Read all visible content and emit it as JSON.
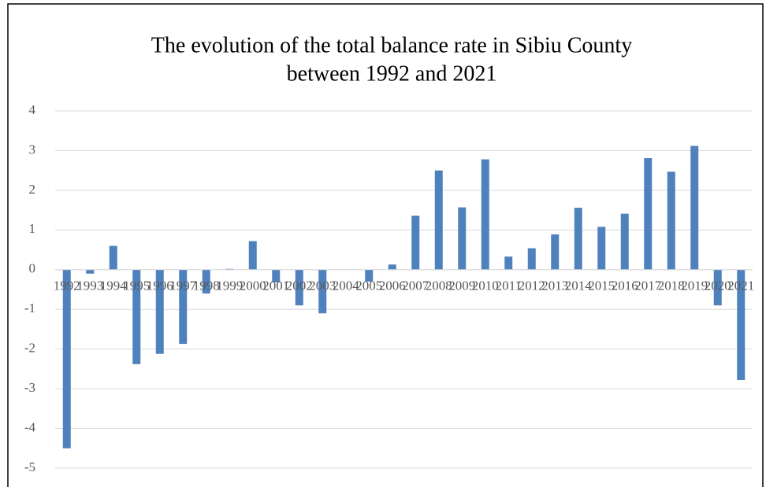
{
  "chart_data": {
    "type": "bar",
    "title": [
      "The evolution of the total balance rate in Sibiu County",
      "between 1992 and 2021"
    ],
    "categories": [
      "1992",
      "1993",
      "1994",
      "1995",
      "1996",
      "1997",
      "1998",
      "1999",
      "2000",
      "2001",
      "2002",
      "2003",
      "2004",
      "2005",
      "2006",
      "2007",
      "2008",
      "2009",
      "2010",
      "2011",
      "2012",
      "2013",
      "2014",
      "2015",
      "2016",
      "2017",
      "2018",
      "2019",
      "2020",
      "2021"
    ],
    "values": [
      -4.5,
      -0.1,
      0.6,
      -2.38,
      -2.12,
      -1.87,
      -0.6,
      0.02,
      0.72,
      -0.32,
      -0.9,
      -1.1,
      0,
      -0.3,
      0.13,
      1.36,
      2.5,
      1.57,
      2.78,
      0.33,
      0.54,
      0.89,
      1.56,
      1.08,
      1.41,
      2.81,
      2.47,
      3.12,
      -0.9,
      -2.78
    ],
    "color": "#4f81bd",
    "ylim": [
      -5,
      4
    ],
    "yticks": [
      -5,
      -4,
      -3,
      -2,
      -1,
      0,
      1,
      2,
      3,
      4
    ],
    "grid": true
  }
}
